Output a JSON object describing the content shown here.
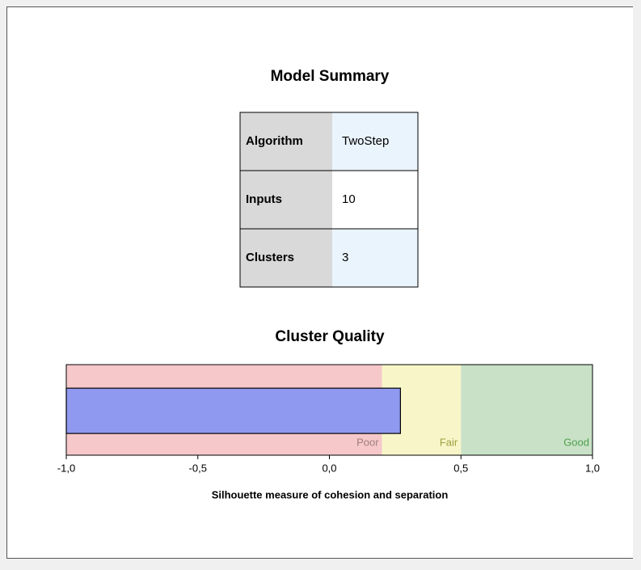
{
  "table": {
    "title": "Model Summary",
    "rows": [
      [
        "Algorithm",
        "TwoStep"
      ],
      [
        "Inputs",
        10
      ],
      [
        "Clusters",
        3
      ]
    ]
  },
  "chart_data": {
    "type": "bar",
    "orientation": "horizontal",
    "title": "Cluster Quality",
    "categories": [
      null
    ],
    "values": [
      0.27
    ],
    "color": "#9099f0",
    "xlabel": "Silhouette measure of cohesion and separation",
    "xlim": [
      -1,
      1
    ],
    "xticks": [
      {
        "value": -1,
        "label": "-1,0"
      },
      {
        "value": -0.5,
        "label": "-0,5"
      },
      {
        "value": 0,
        "label": "0,0"
      },
      {
        "value": 0.5,
        "label": "0,5"
      },
      {
        "value": 1,
        "label": "1,0"
      }
    ],
    "bands": [
      {
        "name": "Poor",
        "from": -1,
        "to": 0.2,
        "color": "#f6c8ca",
        "text_color": "#a08080"
      },
      {
        "name": "Fair",
        "from": 0.2,
        "to": 0.5,
        "color": "#f8f6c8",
        "text_color": "#a0a040"
      },
      {
        "name": "Good",
        "from": 0.5,
        "to": 1,
        "color": "#c9e2c7",
        "text_color": "#50a050"
      }
    ]
  }
}
